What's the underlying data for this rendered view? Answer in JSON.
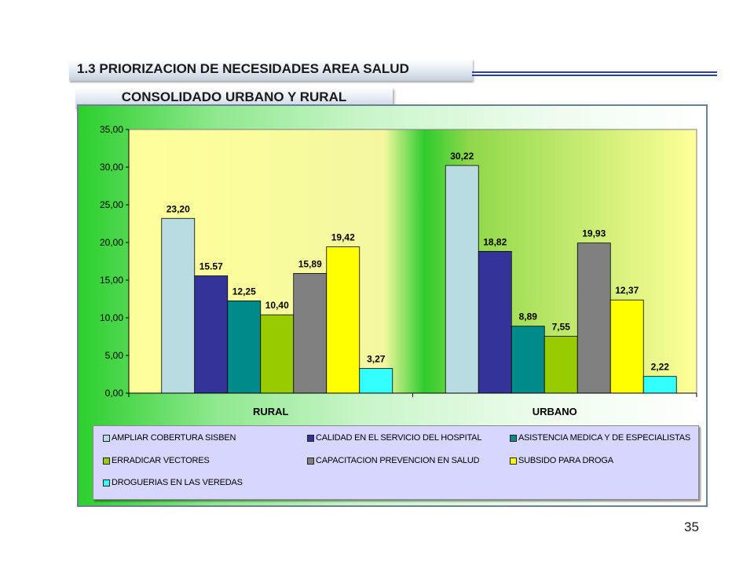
{
  "slide": {
    "title": "1.3 PRIORIZACION DE NECESIDADES AREA  SALUD",
    "subtitle": "CONSOLIDADO URBANO Y RURAL",
    "page_number": "35"
  },
  "chart_data": {
    "type": "bar",
    "categories": [
      "RURAL",
      "URBANO"
    ],
    "ylim": [
      0,
      35
    ],
    "yticks": [
      "0,00",
      "5,00",
      "10,00",
      "15,00",
      "20,00",
      "25,00",
      "30,00",
      "35,00"
    ],
    "grid": false,
    "legend_position": "bottom",
    "series": [
      {
        "name": "AMPLIAR COBERTURA SISBEN",
        "color": "#b9dce3",
        "values": [
          23.2,
          30.22
        ],
        "labels": [
          "23,20",
          "30,22"
        ]
      },
      {
        "name": "CALIDAD EN EL SERVICIO DEL HOSPITAL",
        "color": "#333399",
        "values": [
          15.57,
          18.82
        ],
        "labels": [
          "15.57",
          "18,82"
        ]
      },
      {
        "name": "ASISTENCIA MEDICA Y DE ESPECIALISTAS",
        "color": "#008b8b",
        "values": [
          12.25,
          8.89
        ],
        "labels": [
          "12,25",
          "8,89"
        ]
      },
      {
        "name": "ERRADICAR VECTORES",
        "color": "#99cc00",
        "values": [
          10.4,
          7.55
        ],
        "labels": [
          "10,40",
          "7,55"
        ]
      },
      {
        "name": "CAPACITACION  PREVENCION EN SALUD",
        "color": "#808080",
        "values": [
          15.89,
          19.93
        ],
        "labels": [
          "15,89",
          "19,93"
        ]
      },
      {
        "name": "SUBSIDO PARA DROGA",
        "color": "#ffff00",
        "values": [
          19.42,
          12.37
        ],
        "labels": [
          "19,42",
          "12,37"
        ]
      },
      {
        "name": "DROGUERIAS EN LAS VEREDAS",
        "color": "#33ffff",
        "values": [
          3.27,
          2.22
        ],
        "labels": [
          "3,27",
          "2,22"
        ]
      }
    ]
  }
}
